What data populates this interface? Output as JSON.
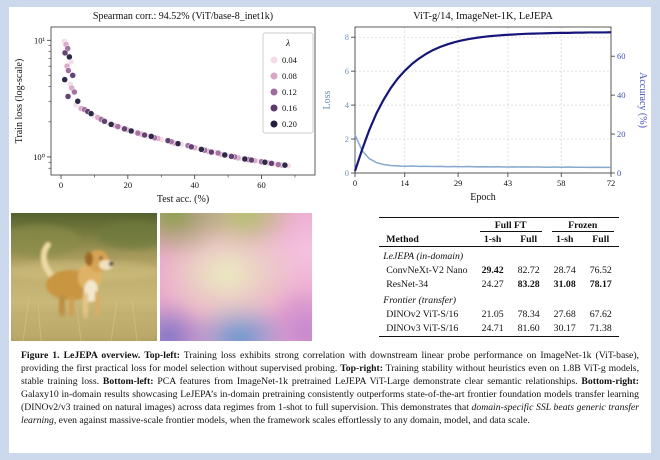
{
  "accent_colors": {
    "page_background": "#ccd8ec",
    "panel_background": "#ffffff"
  },
  "chart_data": [
    {
      "id": "spearman_scatter",
      "type": "scatter",
      "title": "Spearman corr.: 94.52% (ViT/base-8_inet1k)",
      "xlabel": "Test acc. (%)",
      "ylabel": "Train loss (log-scale)",
      "xlim": [
        -3,
        76
      ],
      "ylim_log": [
        0.7,
        13
      ],
      "xticks": [
        0,
        20,
        40,
        60
      ],
      "xticks_minor": [
        10,
        30,
        50,
        70
      ],
      "yticks": [
        {
          "v": 10,
          "label": "10¹"
        },
        {
          "v": 1,
          "label": "10⁰"
        }
      ],
      "yticks_minor": [
        0.8,
        0.9,
        2,
        3,
        4,
        5,
        6,
        7,
        8,
        9
      ],
      "legend_title": "λ",
      "grid": false,
      "legend_position": "right",
      "series": [
        {
          "name": "0.04",
          "color": "#f2dce8",
          "points": [
            [
              1,
              9.8
            ],
            [
              3,
              6.5
            ],
            [
              2.8,
              4.2
            ],
            [
              4.5,
              2.8
            ],
            [
              10,
              2.25
            ],
            [
              14,
              1.96
            ],
            [
              18,
              1.78
            ],
            [
              22,
              1.64
            ],
            [
              26,
              1.51
            ],
            [
              30,
              1.41
            ],
            [
              36,
              1.28
            ],
            [
              41,
              1.18
            ],
            [
              46,
              1.1
            ],
            [
              50,
              1.02
            ],
            [
              54,
              0.97
            ],
            [
              59,
              0.92
            ],
            [
              64,
              0.87
            ],
            [
              68,
              0.84
            ]
          ]
        },
        {
          "name": "0.08",
          "color": "#d9a6c6",
          "points": [
            [
              1.5,
              9.2
            ],
            [
              1.8,
              6.0
            ],
            [
              3.2,
              3.9
            ],
            [
              6,
              2.6
            ],
            [
              11,
              2.18
            ],
            [
              16,
              1.86
            ],
            [
              20,
              1.7
            ],
            [
              24,
              1.57
            ],
            [
              29,
              1.44
            ],
            [
              34,
              1.31
            ],
            [
              40,
              1.2
            ],
            [
              44,
              1.12
            ],
            [
              48,
              1.05
            ],
            [
              53,
              0.98
            ],
            [
              58,
              0.93
            ],
            [
              62,
              0.89
            ],
            [
              66,
              0.85
            ]
          ]
        },
        {
          "name": "0.12",
          "color": "#a06c9e",
          "points": [
            [
              2,
              8.5
            ],
            [
              2.2,
              5.5
            ],
            [
              4,
              3.6
            ],
            [
              7,
              2.55
            ],
            [
              12,
              2.1
            ],
            [
              17,
              1.82
            ],
            [
              23,
              1.6
            ],
            [
              28,
              1.46
            ],
            [
              33,
              1.35
            ],
            [
              38,
              1.25
            ],
            [
              43,
              1.14
            ],
            [
              47,
              1.08
            ],
            [
              52,
              1.0
            ],
            [
              56,
              0.95
            ],
            [
              60,
              0.91
            ],
            [
              65,
              0.86
            ]
          ]
        },
        {
          "name": "0.16",
          "color": "#5c3a6e",
          "points": [
            [
              1.2,
              7.8
            ],
            [
              3.5,
              5.0
            ],
            [
              2.1,
              3.3
            ],
            [
              8,
              2.45
            ],
            [
              13,
              2.02
            ],
            [
              19,
              1.74
            ],
            [
              25,
              1.54
            ],
            [
              32,
              1.38
            ],
            [
              39,
              1.22
            ],
            [
              45,
              1.1
            ],
            [
              51,
              1.01
            ],
            [
              57,
              0.94
            ],
            [
              63,
              0.88
            ]
          ]
        },
        {
          "name": "0.20",
          "color": "#241f3e",
          "points": [
            [
              2.5,
              7.2
            ],
            [
              1.1,
              4.6
            ],
            [
              5,
              3.0
            ],
            [
              9,
              2.35
            ],
            [
              15,
              1.9
            ],
            [
              21,
              1.67
            ],
            [
              27,
              1.5
            ],
            [
              35,
              1.3
            ],
            [
              42,
              1.16
            ],
            [
              49,
              1.04
            ],
            [
              55,
              0.96
            ],
            [
              61,
              0.9
            ],
            [
              67,
              0.85
            ]
          ]
        }
      ]
    },
    {
      "id": "training_curves",
      "type": "line",
      "title": "ViT-g/14, ImageNet-1K, LeJEPA",
      "xlabel": "Epoch",
      "ylabel_left": "Loss",
      "ylabel_right": "Accuracy (%)",
      "left_color": "#6b93bb",
      "right_color": "#3f51b5",
      "xlim": [
        0,
        72
      ],
      "xticks": [
        0,
        14,
        29,
        43,
        58,
        72
      ],
      "ylim_left": [
        0,
        8.6
      ],
      "yticks_left": [
        0,
        2,
        4,
        6,
        8
      ],
      "ylim_right": [
        0,
        75
      ],
      "yticks_right": [
        0,
        20,
        40,
        60
      ],
      "grid": true,
      "series": [
        {
          "name": "Loss",
          "axis": "left",
          "color": "#85a8cc",
          "x": [
            0,
            2,
            4,
            6,
            8,
            10,
            12,
            14,
            16,
            18,
            20,
            22,
            24,
            26,
            28,
            30,
            32,
            34,
            36,
            38,
            40,
            42,
            44,
            46,
            48,
            50,
            52,
            54,
            56,
            58,
            60,
            62,
            64,
            66,
            68,
            70,
            72
          ],
          "y": [
            2.25,
            1.32,
            0.85,
            0.62,
            0.5,
            0.44,
            0.42,
            0.4,
            0.41,
            0.39,
            0.4,
            0.38,
            0.39,
            0.37,
            0.38,
            0.37,
            0.38,
            0.36,
            0.37,
            0.36,
            0.37,
            0.35,
            0.36,
            0.35,
            0.36,
            0.35,
            0.35,
            0.34,
            0.35,
            0.34,
            0.35,
            0.34,
            0.34,
            0.33,
            0.34,
            0.33,
            0.33
          ]
        },
        {
          "name": "Accuracy",
          "axis": "right",
          "color": "#16167a",
          "x": [
            0,
            2,
            4,
            6,
            8,
            10,
            12,
            14,
            16,
            18,
            20,
            22,
            24,
            26,
            28,
            30,
            32,
            34,
            36,
            38,
            40,
            42,
            44,
            46,
            48,
            50,
            52,
            54,
            56,
            58,
            60,
            62,
            64,
            66,
            68,
            70,
            72
          ],
          "y": [
            1,
            12,
            22,
            30.5,
            37.5,
            43.5,
            48.5,
            52.5,
            56,
            58.8,
            61.2,
            63.2,
            64.8,
            66.1,
            67.2,
            68.1,
            68.8,
            69.4,
            69.9,
            70.3,
            70.6,
            70.9,
            71.1,
            71.3,
            71.5,
            71.6,
            71.7,
            71.8,
            71.9,
            72,
            72,
            72.1,
            72.1,
            72.2,
            72.2,
            72.2,
            72.3
          ]
        }
      ]
    }
  ],
  "table": {
    "group_headers": [
      {
        "label": "Full FT",
        "span": 2
      },
      {
        "label": "Frozen",
        "span": 2
      }
    ],
    "col_headers": [
      "Method",
      "1-sh",
      "Full",
      "1-sh",
      "Full"
    ],
    "sections": [
      {
        "label": "LeJEPA (in-domain)",
        "rows": [
          {
            "method": "ConvNeXt-V2 Nano",
            "values": [
              "29.42",
              "82.72",
              "28.74",
              "76.52"
            ],
            "bold": [
              true,
              false,
              false,
              false
            ]
          },
          {
            "method": "ResNet-34",
            "values": [
              "24.27",
              "83.28",
              "31.08",
              "78.17"
            ],
            "bold": [
              false,
              true,
              true,
              true
            ]
          }
        ]
      },
      {
        "label": "Frontier (transfer)",
        "rows": [
          {
            "method": "DINOv2 ViT-S/16",
            "values": [
              "21.05",
              "78.34",
              "27.68",
              "67.62"
            ],
            "bold": [
              false,
              false,
              false,
              false
            ]
          },
          {
            "method": "DINOv3 ViT-S/16",
            "values": [
              "24.71",
              "81.60",
              "30.17",
              "71.38"
            ],
            "bold": [
              false,
              false,
              false,
              false
            ]
          }
        ]
      }
    ]
  },
  "caption": {
    "segments": [
      {
        "text": "Figure 1.  LeJEPA overview. ",
        "bold": true
      },
      {
        "text": "Top-left:",
        "bold": true
      },
      {
        "text": " Training loss exhibits strong correlation with downstream linear probe performance on ImageNet-1k (ViT-base), providing the first practical loss for model selection without supervised probing. "
      },
      {
        "text": "Top-right:",
        "bold": true
      },
      {
        "text": " Training stability without heuristics even on 1.8B ViT-g models, stable training loss. "
      },
      {
        "text": "Bottom-left:",
        "bold": true
      },
      {
        "text": " PCA features from ImageNet-1k pretrained LeJEPA ViT-Large demonstrate clear semantic relationships. "
      },
      {
        "text": "Bottom-right:",
        "bold": true
      },
      {
        "text": " Galaxy10 in-domain results showcasing LeJEPA’s in-domain pretraining consistently outperforms state-of-the-art frontier foundation models transfer learning (DINOv2/v3 trained on natural images) across data regimes from 1-shot to full supervision. This demonstrates that "
      },
      {
        "text": "domain-specific SSL beats generic transfer learning",
        "italic": true
      },
      {
        "text": ", even against massive-scale frontier models, when the framework scales effortlessly to any domain, model, and data scale."
      }
    ]
  }
}
